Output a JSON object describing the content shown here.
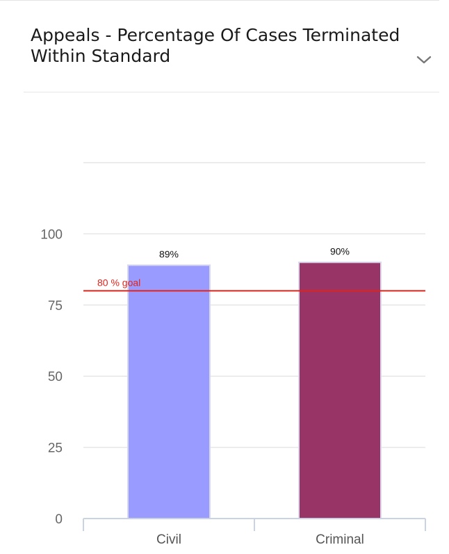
{
  "header": {
    "title": "Appeals - Percentage Of Cases Terminated Within Standard",
    "expand_icon": "chevron-down-icon"
  },
  "chart_data": {
    "type": "bar",
    "title": "Appeals - Percentage Of Cases Terminated Within Standard",
    "xlabel": "",
    "ylabel": "",
    "categories": [
      "Civil",
      "Criminal"
    ],
    "values": [
      89,
      90
    ],
    "data_labels": [
      "89%",
      "90%"
    ],
    "colors": [
      "#9a9bff",
      "#983566"
    ],
    "yticks": [
      "0",
      "25",
      "50",
      "75",
      "100"
    ],
    "ylim": [
      0,
      125
    ],
    "grid": true,
    "goal": {
      "value": 80,
      "label": "80 % goal",
      "color": "#e2231a"
    }
  }
}
